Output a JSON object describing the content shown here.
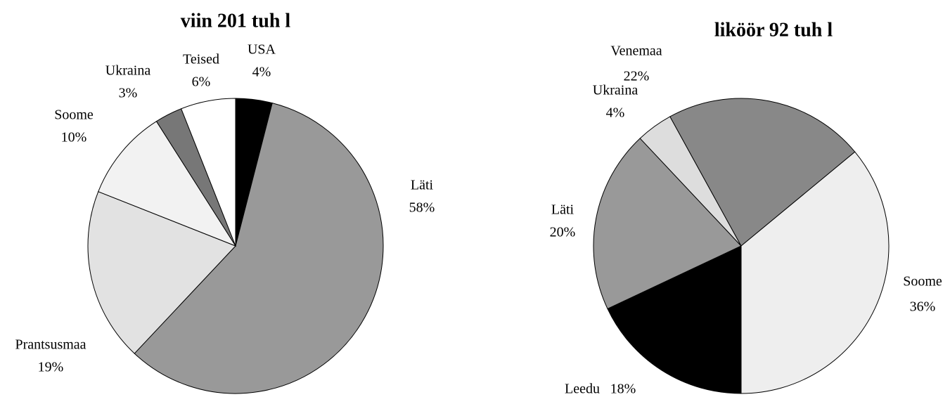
{
  "chart_data": [
    {
      "type": "pie",
      "title": "viin 201  tuh l",
      "categories": [
        "USA",
        "Läti",
        "Prantsusmaa",
        "Soome",
        "Ukraina",
        "Teised"
      ],
      "values": [
        4,
        58,
        19,
        10,
        3,
        6
      ],
      "value_labels": [
        "4%",
        "58%",
        "19%",
        "10%",
        "3%",
        "6%"
      ],
      "colors": [
        "#000000",
        "#999999",
        "#e2e2e2",
        "#f2f2f2",
        "#777777",
        "#ffffff"
      ]
    },
    {
      "type": "pie",
      "title": "liköör 92 tuh l",
      "categories": [
        "Leedu",
        "Läti",
        "Ukraina",
        "Venemaa",
        "Soome"
      ],
      "values": [
        18,
        20,
        4,
        22,
        36
      ],
      "value_labels": [
        "18%",
        "20%",
        "4%",
        "22%",
        "36%"
      ],
      "colors": [
        "#000000",
        "#999999",
        "#dddddd",
        "#888888",
        "#eeeeee"
      ]
    }
  ]
}
